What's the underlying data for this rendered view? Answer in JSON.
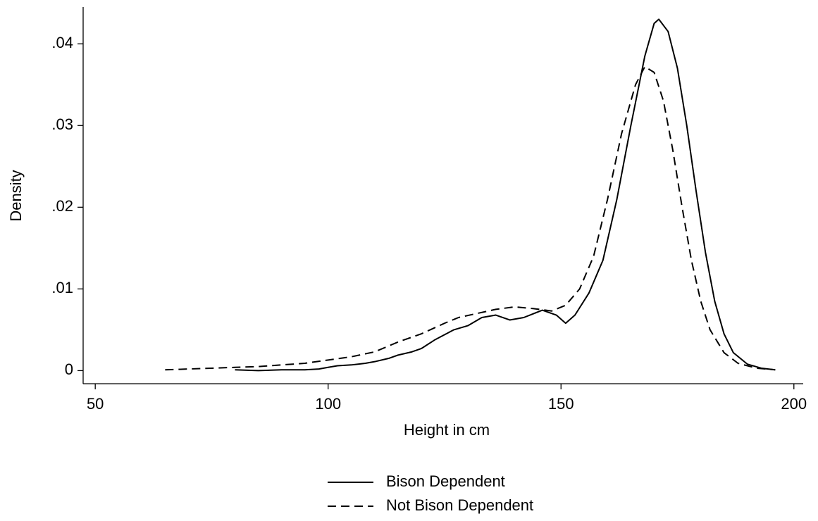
{
  "chart_data": {
    "type": "line",
    "xlabel": "Height in cm",
    "ylabel": "Density",
    "xlim": [
      47.4,
      202
    ],
    "xticks": [
      50,
      100,
      150,
      200
    ],
    "ylim": [
      -0.0016,
      0.0445
    ],
    "yticks": [
      0,
      {
        "value": 0.01,
        "label": ".01"
      },
      {
        "value": 0.02,
        "label": ".02"
      },
      {
        "value": 0.03,
        "label": ".03"
      },
      {
        "value": 0.04,
        "label": ".04"
      }
    ],
    "legend": "bottom",
    "series": [
      {
        "name": "Bison Dependent",
        "color": "#000000",
        "dash": "solid",
        "x": [
          80,
          85,
          90,
          95,
          98,
          100,
          102,
          105,
          108,
          110,
          113,
          115,
          118,
          120,
          123,
          125,
          127,
          130,
          133,
          136,
          139,
          142,
          146,
          149,
          151,
          153,
          156,
          159,
          162,
          165,
          168,
          170,
          171,
          173,
          175,
          177,
          179,
          181,
          183,
          185,
          187,
          190,
          193,
          196
        ],
        "values": [
          0.0001,
          0.0,
          0.0001,
          0.0001,
          0.0002,
          0.0004,
          0.0006,
          0.0007,
          0.0009,
          0.0011,
          0.0015,
          0.0019,
          0.0023,
          0.0027,
          0.0038,
          0.0044,
          0.005,
          0.0055,
          0.0065,
          0.0068,
          0.0062,
          0.0065,
          0.0074,
          0.0068,
          0.0058,
          0.0068,
          0.0095,
          0.0135,
          0.021,
          0.03,
          0.0385,
          0.0425,
          0.043,
          0.0415,
          0.037,
          0.03,
          0.022,
          0.0145,
          0.0085,
          0.0045,
          0.0022,
          0.0008,
          0.0003,
          0.0001
        ]
      },
      {
        "name": "Not Bison Dependent",
        "color": "#000000",
        "dash": "dashed",
        "x": [
          65,
          70,
          75,
          80,
          85,
          90,
          95,
          100,
          105,
          110,
          115,
          120,
          125,
          128,
          132,
          136,
          140,
          144,
          148,
          151,
          154,
          157,
          160,
          163,
          166,
          168,
          170,
          172,
          174,
          176,
          178,
          180,
          182,
          185,
          188,
          192,
          196
        ],
        "values": [
          0.0001,
          0.0002,
          0.0003,
          0.0004,
          0.0005,
          0.0007,
          0.0009,
          0.0013,
          0.0017,
          0.0023,
          0.0035,
          0.0045,
          0.0058,
          0.0065,
          0.007,
          0.0075,
          0.0078,
          0.0076,
          0.0073,
          0.008,
          0.01,
          0.014,
          0.021,
          0.029,
          0.035,
          0.0372,
          0.0365,
          0.033,
          0.027,
          0.02,
          0.0135,
          0.0085,
          0.005,
          0.0022,
          0.0009,
          0.0003,
          0.0001
        ]
      }
    ]
  }
}
